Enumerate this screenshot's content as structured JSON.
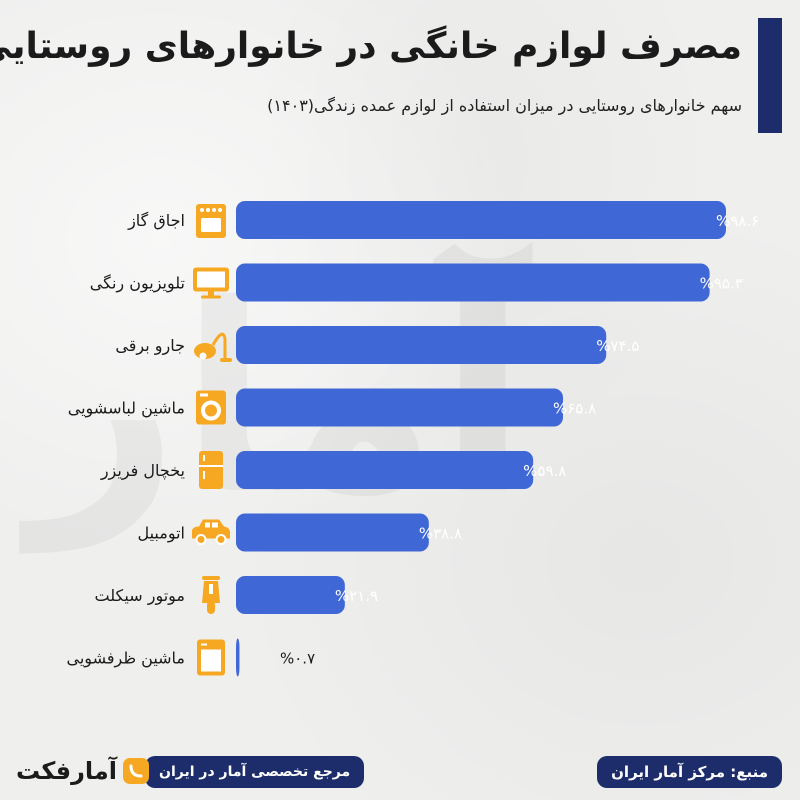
{
  "title": "مصرف لوازم خانگی در خانوارهای روستایی",
  "subtitle": "سهم خانوارهای روستایی در میزان استفاده از لوازم عمده زندگی(۱۴۰۳)",
  "footer": {
    "source": "منبع: مرکز آمار ایران",
    "reference": "مرجع تخصصی آمار در ایران",
    "logo_text": "آمارفکت"
  },
  "colors": {
    "bar": "#3f67d6",
    "icon": "#f7a823",
    "accent": "#1d2d6b"
  },
  "chart_data": {
    "type": "bar",
    "orientation": "horizontal",
    "categories": [
      "اجاق گاز",
      "تلویزیون رنگی",
      "جارو برقی",
      "ماشین لباسشویی",
      "یخچال فریزر",
      "اتومبیل",
      "موتور سیکلت",
      "ماشین ظرفشویی"
    ],
    "values": [
      98.6,
      95.3,
      74.5,
      65.8,
      59.8,
      38.8,
      21.9,
      0.7
    ],
    "value_labels": [
      "%۹۸.۶",
      "%۹۵.۳",
      "%۷۴.۵",
      "%۶۵.۸",
      "%۵۹.۸",
      "%۳۸.۸",
      "%۲۱.۹",
      "%۰.۷"
    ],
    "icons": [
      "stove-icon",
      "tv-icon",
      "vacuum-icon",
      "washing-machine-icon",
      "fridge-icon",
      "car-icon",
      "motorcycle-icon",
      "dishwasher-icon"
    ],
    "xlim": [
      0,
      100
    ],
    "grid": false,
    "legend": "none"
  }
}
